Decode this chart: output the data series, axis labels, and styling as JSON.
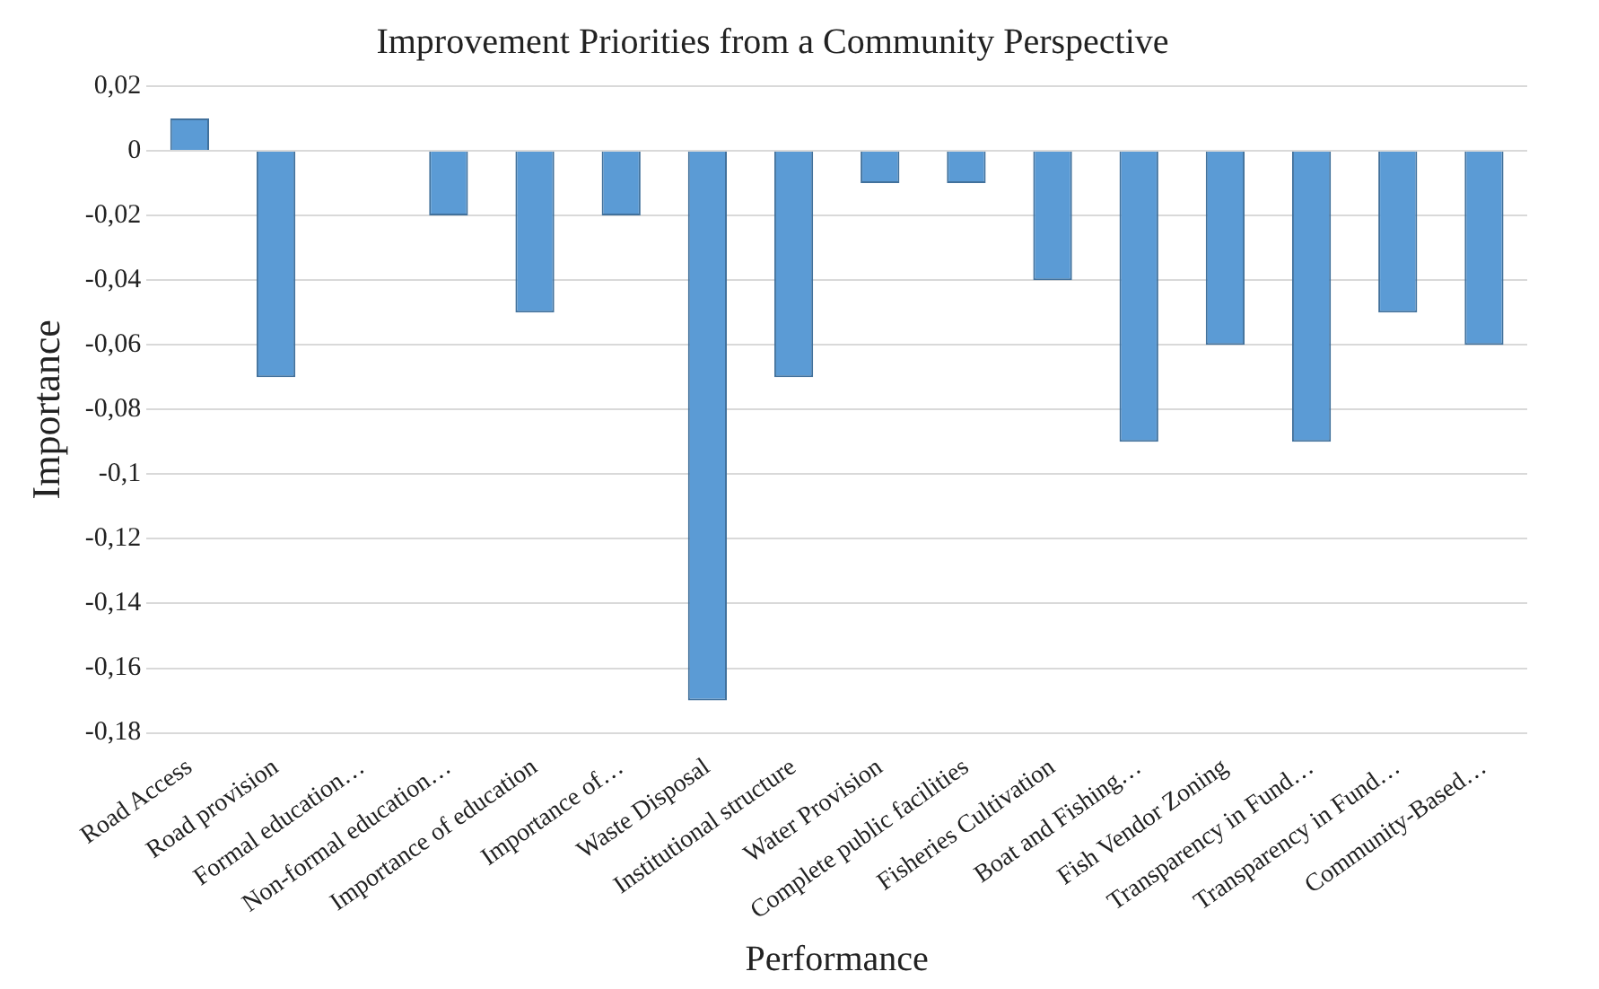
{
  "chart_data": {
    "type": "bar",
    "title": "Improvement Priorities from a Community Perspective",
    "xlabel": "Performance",
    "ylabel": "Importance",
    "categories": [
      "Road Access",
      "Road provision",
      "Formal education…",
      "Non-formal education…",
      "Importance of education",
      "Importance of…",
      "Waste Disposal",
      "Institutional structure",
      "Water Provision",
      "Complete public facilities",
      "Fisheries Cultivation",
      "Boat and Fishing…",
      "Fish Vendor Zoning",
      "Transparency in Fund…",
      "Transparency in Fund…",
      "Community-Based…"
    ],
    "values": [
      0.01,
      -0.07,
      0,
      -0.02,
      -0.05,
      -0.02,
      -0.17,
      -0.07,
      -0.01,
      -0.01,
      -0.04,
      -0.09,
      -0.06,
      -0.09,
      -0.05,
      -0.06
    ],
    "color": "#5b9bd5",
    "ylim": [
      -0.18,
      0.02
    ],
    "yticks": [
      {
        "value": 0.02,
        "label": "0,02"
      },
      0,
      {
        "value": -0.02,
        "label": "-0,02"
      },
      {
        "value": -0.04,
        "label": "-0,04"
      },
      {
        "value": -0.06,
        "label": "-0,06"
      },
      {
        "value": -0.08,
        "label": "-0,08"
      },
      {
        "value": -0.1,
        "label": "-0,1"
      },
      {
        "value": -0.12,
        "label": "-0,12"
      },
      {
        "value": -0.14,
        "label": "-0,14"
      },
      {
        "value": -0.16,
        "label": "-0,16"
      },
      {
        "value": -0.18,
        "label": "-0,18"
      }
    ],
    "grid": "y"
  }
}
